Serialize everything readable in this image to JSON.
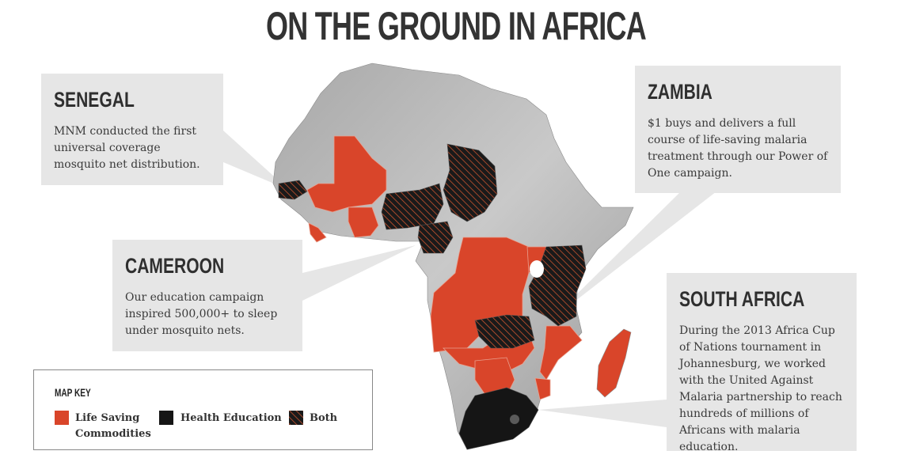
{
  "title": "ON THE GROUND IN AFRICA",
  "colors": {
    "orange": "#d9452a",
    "dark": "#151515",
    "card": "#e6e6e6"
  },
  "cards": {
    "senegal": {
      "heading": "SENEGAL",
      "text": "MNM conducted the first universal coverage mosquito net distribution."
    },
    "zambia": {
      "heading": "ZAMBIA",
      "text": "$1 buys and delivers a full course of life-saving malaria treatment through our Power of One campaign."
    },
    "cameroon": {
      "heading": "CAMEROON",
      "text": "Our education campaign inspired 500,000+ to sleep under mosquito nets."
    },
    "south_africa": {
      "heading": "SOUTH AFRICA",
      "text": "During the 2013 Africa Cup of Nations tournament in Johannesburg, we worked with the United Against Malaria partnership to reach hundreds of millions of Africans with malaria education."
    }
  },
  "legend": {
    "title": "MAP KEY",
    "items": [
      {
        "label": "Life Saving Commodities",
        "line1": "Life Saving",
        "line2": "Commodities",
        "icon": "orange-swatch"
      },
      {
        "label": "Health Education",
        "icon": "black-swatch"
      },
      {
        "label": "Both",
        "icon": "hatched-swatch"
      }
    ]
  }
}
